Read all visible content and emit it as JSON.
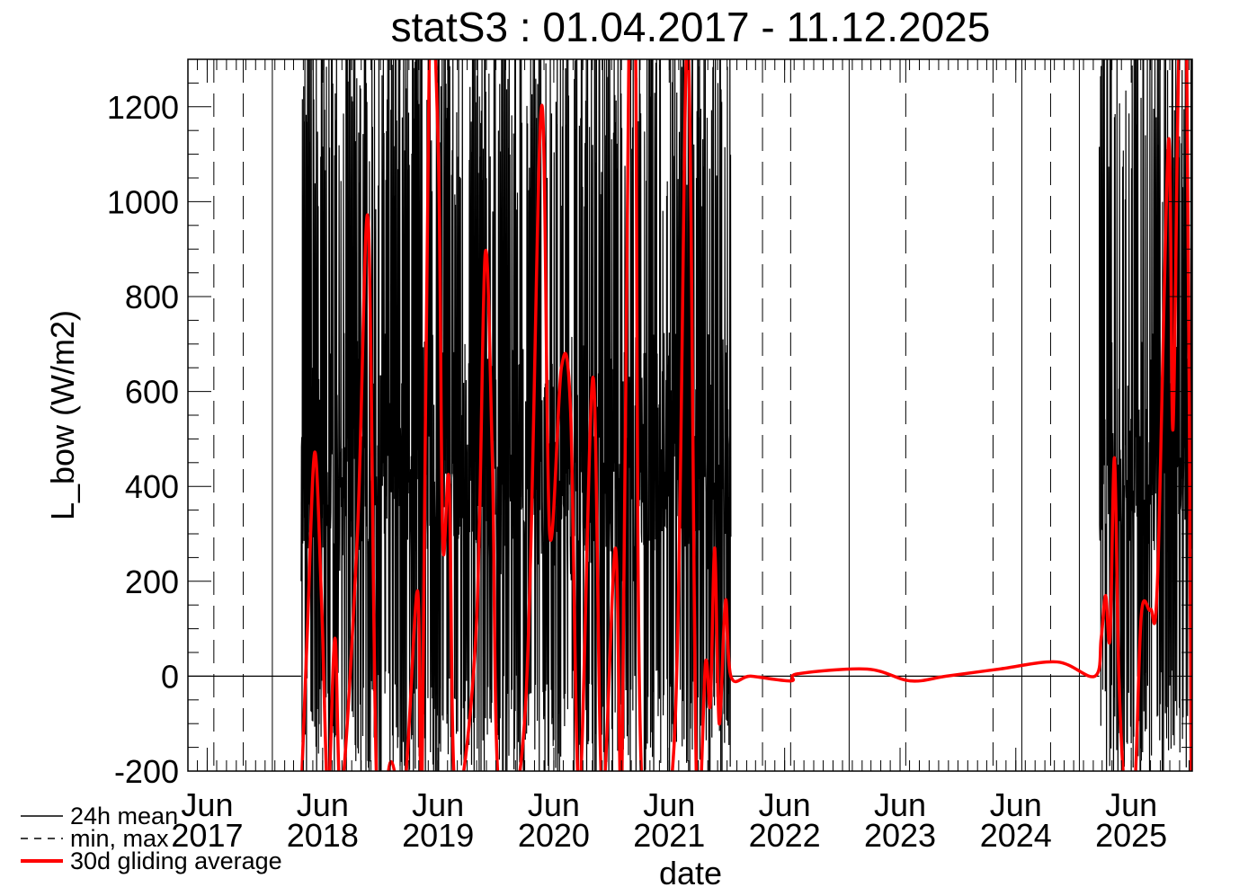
{
  "chart_data": {
    "type": "line",
    "title": "statS3 : 01.04.2017 - 11.12.2025",
    "xlabel": "date",
    "ylabel": "L_bow (W/m2)",
    "xlim": [
      "2017-04-01",
      "2025-12-11"
    ],
    "ylim": [
      -200,
      1300
    ],
    "yticks": [
      -200,
      0,
      200,
      400,
      600,
      800,
      1000,
      1200
    ],
    "xticks": [
      {
        "date": "2017-06-01",
        "month": "Jun",
        "year": "2017"
      },
      {
        "date": "2018-06-01",
        "month": "Jun",
        "year": "2018"
      },
      {
        "date": "2019-06-01",
        "month": "Jun",
        "year": "2019"
      },
      {
        "date": "2020-06-01",
        "month": "Jun",
        "year": "2020"
      },
      {
        "date": "2021-06-01",
        "month": "Jun",
        "year": "2021"
      },
      {
        "date": "2022-06-01",
        "month": "Jun",
        "year": "2022"
      },
      {
        "date": "2023-06-01",
        "month": "Jun",
        "year": "2023"
      },
      {
        "date": "2024-06-01",
        "month": "Jun",
        "year": "2024"
      },
      {
        "date": "2025-06-01",
        "month": "Jun",
        "year": "2025"
      }
    ],
    "grid": false,
    "legend": {
      "placement": "bottom-left",
      "entries": [
        {
          "label": "24h mean",
          "style": "solid",
          "color": "#000000"
        },
        {
          "label": "min, max",
          "style": "dashed",
          "color": "#000000"
        },
        {
          "label": "30d gliding average",
          "style": "solid-thick",
          "color": "#ff0000"
        }
      ]
    },
    "series": [
      {
        "name": "24h mean",
        "color": "#000000",
        "segments": [
          {
            "from": "2017-04-01",
            "to": "2018-03-25",
            "min": 0,
            "max": 0
          },
          {
            "from": "2018-03-25",
            "to": "2021-12-13",
            "min": -200,
            "max": 1300
          },
          {
            "from": "2021-12-13",
            "to": "2025-02-20",
            "min": 0,
            "max": 0
          },
          {
            "from": "2025-02-20",
            "to": "2025-12-11",
            "min": -200,
            "max": 1300
          }
        ]
      },
      {
        "name": "min, max",
        "color": "#000000",
        "vertical_lines": [
          {
            "date": "2017-06-22",
            "style": "dashed"
          },
          {
            "date": "2017-09-23",
            "style": "dashed"
          },
          {
            "date": "2017-12-24",
            "style": "solid"
          },
          {
            "date": "2022-03-23",
            "style": "dashed"
          },
          {
            "date": "2022-06-20",
            "style": "dashed"
          },
          {
            "date": "2022-12-22",
            "style": "solid"
          },
          {
            "date": "2023-06-19",
            "style": "dashed"
          },
          {
            "date": "2024-03-21",
            "style": "dashed"
          },
          {
            "date": "2024-06-20",
            "style": "solid"
          },
          {
            "date": "2024-09-19",
            "style": "dashed"
          },
          {
            "date": "2024-12-19",
            "style": "solid"
          }
        ]
      },
      {
        "name": "30d gliding average",
        "color": "#ff0000",
        "points": [
          [
            "2018-03-25",
            -250
          ],
          [
            "2018-04-14",
            100
          ],
          [
            "2018-05-07",
            472
          ],
          [
            "2018-05-29",
            150
          ],
          [
            "2018-06-18",
            -250
          ],
          [
            "2018-07-10",
            80
          ],
          [
            "2018-07-30",
            -250
          ],
          [
            "2018-09-19",
            300
          ],
          [
            "2018-10-23",
            962
          ],
          [
            "2018-11-20",
            -250
          ],
          [
            "2019-01-03",
            -180
          ],
          [
            "2019-02-14",
            -250
          ],
          [
            "2019-03-28",
            180
          ],
          [
            "2019-04-11",
            -250
          ],
          [
            "2019-05-05",
            1350
          ],
          [
            "2019-06-02",
            1100
          ],
          [
            "2019-06-16",
            280
          ],
          [
            "2019-07-06",
            410
          ],
          [
            "2019-07-26",
            -250
          ],
          [
            "2019-09-29",
            90
          ],
          [
            "2019-10-28",
            890
          ],
          [
            "2019-11-20",
            450
          ],
          [
            "2019-12-12",
            -250
          ],
          [
            "2020-03-03",
            -70
          ],
          [
            "2020-04-23",
            1200
          ],
          [
            "2020-05-19",
            300
          ],
          [
            "2020-06-25",
            650
          ],
          [
            "2020-07-24",
            560
          ],
          [
            "2020-08-21",
            -250
          ],
          [
            "2020-10-03",
            630
          ],
          [
            "2020-11-01",
            -250
          ],
          [
            "2020-12-13",
            270
          ],
          [
            "2021-01-02",
            -250
          ],
          [
            "2021-01-25",
            1350
          ],
          [
            "2021-02-14",
            1350
          ],
          [
            "2021-03-08",
            -250
          ],
          [
            "2021-06-16",
            -150
          ],
          [
            "2021-07-29",
            1350
          ],
          [
            "2021-08-27",
            -250
          ],
          [
            "2021-09-24",
            30
          ],
          [
            "2021-10-09",
            -60
          ],
          [
            "2021-10-23",
            270
          ],
          [
            "2021-11-06",
            -100
          ],
          [
            "2021-11-26",
            160
          ],
          [
            "2021-12-13",
            0
          ],
          [
            "2022-02-14",
            0
          ],
          [
            "2022-06-20",
            -10
          ],
          [
            "2022-07-13",
            5
          ],
          [
            "2023-02-17",
            15
          ],
          [
            "2023-07-03",
            -10
          ],
          [
            "2023-10-25",
            0
          ],
          [
            "2024-04-10",
            15
          ],
          [
            "2024-10-10",
            30
          ],
          [
            "2025-02-06",
            0
          ],
          [
            "2025-02-26",
            80
          ],
          [
            "2025-03-12",
            170
          ],
          [
            "2025-03-26",
            80
          ],
          [
            "2025-04-09",
            460
          ],
          [
            "2025-04-23",
            0
          ],
          [
            "2025-05-13",
            -250
          ],
          [
            "2025-06-11",
            -250
          ],
          [
            "2025-07-03",
            130
          ],
          [
            "2025-08-01",
            140
          ],
          [
            "2025-08-23",
            200
          ],
          [
            "2025-09-27",
            1130
          ],
          [
            "2025-10-11",
            520
          ],
          [
            "2025-10-31",
            1350
          ],
          [
            "2025-11-23",
            1350
          ],
          [
            "2025-12-08",
            -250
          ]
        ]
      }
    ]
  }
}
